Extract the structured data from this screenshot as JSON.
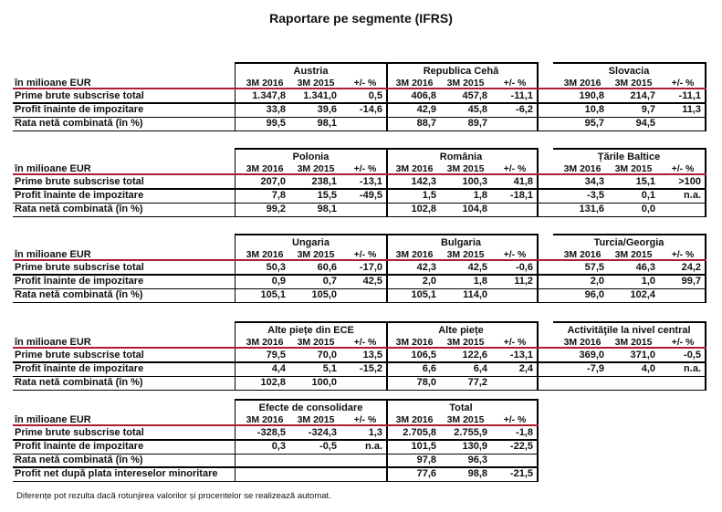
{
  "title": "Raportare pe segmente (IFRS)",
  "unit_label": "în milioane EUR",
  "col_headers": [
    "3M 2016",
    "3M 2015",
    "+/- %"
  ],
  "row_labels": {
    "gwp": "Prime brute subscrise total",
    "pbt": "Profit înainte de impozitare",
    "ncr": "Rata netă combinată (în %)",
    "npm": "Profit net după plata intereselor minoritare"
  },
  "blocks": [
    {
      "segments": [
        {
          "name": "Austria",
          "gwp": [
            "1.347,8",
            "1.341,0",
            "0,5"
          ],
          "pbt": [
            "33,8",
            "39,6",
            "-14,6"
          ],
          "ncr": [
            "99,5",
            "98,1",
            ""
          ]
        },
        {
          "name": "Republica Cehă",
          "gwp": [
            "406,8",
            "457,8",
            "-11,1"
          ],
          "pbt": [
            "42,9",
            "45,8",
            "-6,2"
          ],
          "ncr": [
            "88,7",
            "89,7",
            ""
          ]
        },
        {
          "name": "Slovacia",
          "gwp": [
            "190,8",
            "214,7",
            "-11,1"
          ],
          "pbt": [
            "10,8",
            "9,7",
            "11,3"
          ],
          "ncr": [
            "95,7",
            "94,5",
            ""
          ]
        }
      ]
    },
    {
      "segments": [
        {
          "name": "Polonia",
          "gwp": [
            "207,0",
            "238,1",
            "-13,1"
          ],
          "pbt": [
            "7,8",
            "15,5",
            "-49,5"
          ],
          "ncr": [
            "99,2",
            "98,1",
            ""
          ]
        },
        {
          "name": "România",
          "gwp": [
            "142,3",
            "100,3",
            "41,8"
          ],
          "pbt": [
            "1,5",
            "1,8",
            "-18,1"
          ],
          "ncr": [
            "102,8",
            "104,8",
            ""
          ]
        },
        {
          "name": "Țările Baltice",
          "gwp": [
            "34,3",
            "15,1",
            ">100"
          ],
          "pbt": [
            "-3,5",
            "0,1",
            "n.a."
          ],
          "ncr": [
            "131,6",
            "0,0",
            ""
          ]
        }
      ]
    },
    {
      "segments": [
        {
          "name": "Ungaria",
          "gwp": [
            "50,3",
            "60,6",
            "-17,0"
          ],
          "pbt": [
            "0,9",
            "0,7",
            "42,5"
          ],
          "ncr": [
            "105,1",
            "105,0",
            ""
          ]
        },
        {
          "name": "Bulgaria",
          "gwp": [
            "42,3",
            "42,5",
            "-0,6"
          ],
          "pbt": [
            "2,0",
            "1,8",
            "11,2"
          ],
          "ncr": [
            "105,1",
            "114,0",
            ""
          ]
        },
        {
          "name": "Turcia/Georgia",
          "gwp": [
            "57,5",
            "46,3",
            "24,2"
          ],
          "pbt": [
            "2,0",
            "1,0",
            "99,7"
          ],
          "ncr": [
            "96,0",
            "102,4",
            ""
          ]
        }
      ]
    },
    {
      "segments": [
        {
          "name": "Alte piețe din ECE",
          "gwp": [
            "79,5",
            "70,0",
            "13,5"
          ],
          "pbt": [
            "4,4",
            "5,1",
            "-15,2"
          ],
          "ncr": [
            "102,8",
            "100,0",
            ""
          ]
        },
        {
          "name": "Alte piețe",
          "gwp": [
            "106,5",
            "122,6",
            "-13,1"
          ],
          "pbt": [
            "6,6",
            "6,4",
            "2,4"
          ],
          "ncr": [
            "78,0",
            "77,2",
            ""
          ]
        },
        {
          "name": "Activităţile la nivel central",
          "gwp": [
            "369,0",
            "371,0",
            "-0,5"
          ],
          "pbt": [
            "-7,9",
            "4,0",
            "n.a."
          ],
          "ncr": [
            "",
            "",
            ""
          ]
        }
      ]
    },
    {
      "segments": [
        {
          "name": "Efecte de consolidare",
          "gwp": [
            "-328,5",
            "-324,3",
            "1,3"
          ],
          "pbt": [
            "0,3",
            "-0,5",
            "n.a."
          ],
          "ncr": [
            "",
            "",
            ""
          ],
          "npm": [
            "",
            "",
            ""
          ]
        },
        {
          "name": "Total",
          "gwp": [
            "2.705,8",
            "2.755,9",
            "-1,8"
          ],
          "pbt": [
            "101,5",
            "130,9",
            "-22,5"
          ],
          "ncr": [
            "97,8",
            "96,3",
            ""
          ],
          "npm": [
            "77,6",
            "98,8",
            "-21,5"
          ]
        }
      ]
    }
  ],
  "footnote": "Diferențe pot rezulta dacă rotunjirea valorilor și procentelor se realizează automat."
}
